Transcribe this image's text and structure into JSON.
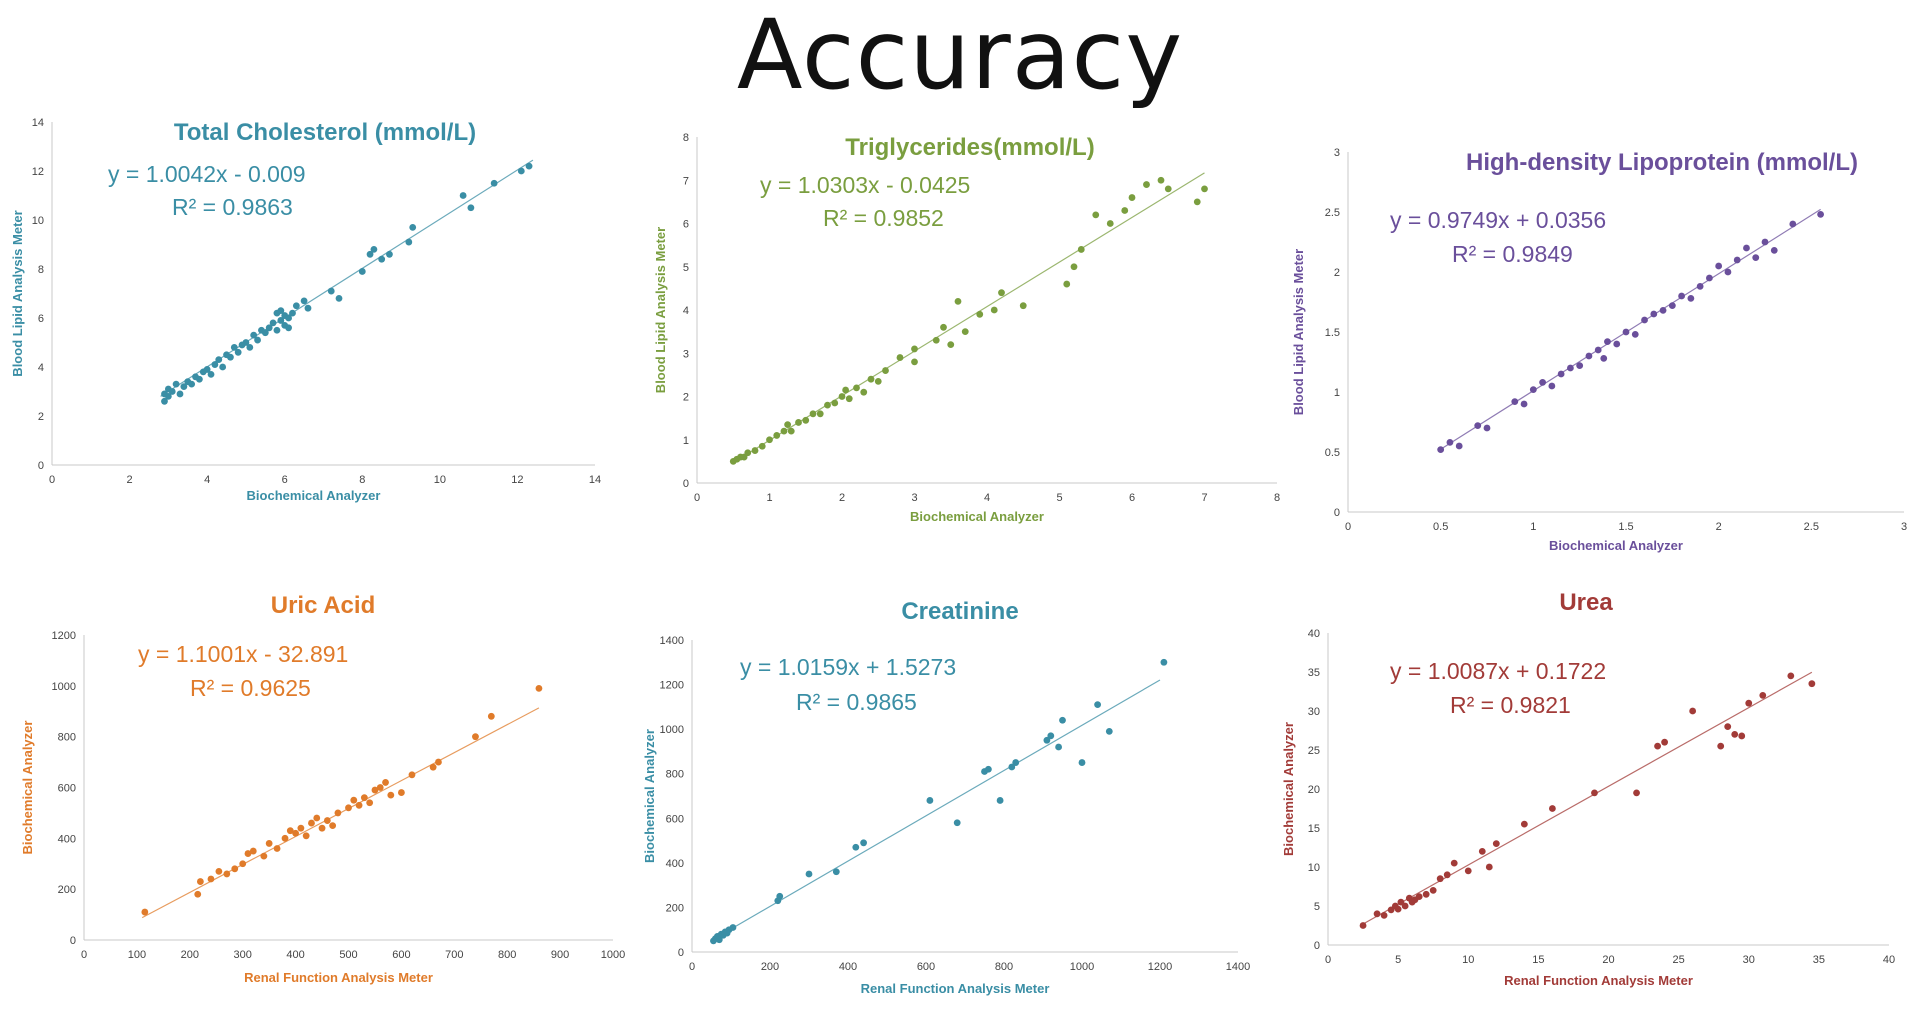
{
  "page_title": "Accuracy",
  "chart_data": [
    {
      "type": "scatter",
      "title": "Total Cholesterol (mmol/L)",
      "color": "#3a8ea5",
      "eq": "y = 1.0042x - 0.009",
      "r2": "R² = 0.9863",
      "xlabel": "Biochemical Analyzer",
      "ylabel": "Blood Lipid Analysis Meter",
      "xlim": [
        0,
        14
      ],
      "ylim": [
        0,
        14
      ],
      "xticks": [
        0,
        2,
        4,
        6,
        8,
        10,
        12,
        14
      ],
      "yticks": [
        0,
        2,
        4,
        6,
        8,
        10,
        12,
        14
      ],
      "trendline": {
        "slope": 1.0042,
        "intercept": -0.009,
        "x_range": [
          2.8,
          12.4
        ]
      },
      "points": [
        [
          2.9,
          2.6
        ],
        [
          2.9,
          2.9
        ],
        [
          3.0,
          2.8
        ],
        [
          3.0,
          3.1
        ],
        [
          3.1,
          3.0
        ],
        [
          3.2,
          3.3
        ],
        [
          3.3,
          2.9
        ],
        [
          3.4,
          3.2
        ],
        [
          3.5,
          3.4
        ],
        [
          3.6,
          3.3
        ],
        [
          3.7,
          3.6
        ],
        [
          3.8,
          3.5
        ],
        [
          3.9,
          3.8
        ],
        [
          4.0,
          3.9
        ],
        [
          4.1,
          3.7
        ],
        [
          4.2,
          4.1
        ],
        [
          4.3,
          4.3
        ],
        [
          4.4,
          4.0
        ],
        [
          4.5,
          4.5
        ],
        [
          4.6,
          4.4
        ],
        [
          4.7,
          4.8
        ],
        [
          4.8,
          4.6
        ],
        [
          4.9,
          4.9
        ],
        [
          5.0,
          5.0
        ],
        [
          5.1,
          4.8
        ],
        [
          5.2,
          5.3
        ],
        [
          5.3,
          5.1
        ],
        [
          5.4,
          5.5
        ],
        [
          5.5,
          5.4
        ],
        [
          5.6,
          5.6
        ],
        [
          5.7,
          5.8
        ],
        [
          5.8,
          5.5
        ],
        [
          5.8,
          6.2
        ],
        [
          5.9,
          5.9
        ],
        [
          5.9,
          6.3
        ],
        [
          6.0,
          5.7
        ],
        [
          6.0,
          6.1
        ],
        [
          6.1,
          6.0
        ],
        [
          6.1,
          5.6
        ],
        [
          6.2,
          6.2
        ],
        [
          6.3,
          6.5
        ],
        [
          6.5,
          6.7
        ],
        [
          6.6,
          6.4
        ],
        [
          7.2,
          7.1
        ],
        [
          7.4,
          6.8
        ],
        [
          8.0,
          7.9
        ],
        [
          8.2,
          8.6
        ],
        [
          8.3,
          8.8
        ],
        [
          8.5,
          8.4
        ],
        [
          8.7,
          8.6
        ],
        [
          9.2,
          9.1
        ],
        [
          9.3,
          9.7
        ],
        [
          10.6,
          11.0
        ],
        [
          10.8,
          10.5
        ],
        [
          11.4,
          11.5
        ],
        [
          12.1,
          12.0
        ],
        [
          12.3,
          12.2
        ]
      ]
    },
    {
      "type": "scatter",
      "title": "Triglycerides(mmol/L)",
      "color": "#7a9e3f",
      "eq": "y = 1.0303x - 0.0425",
      "r2": "R² = 0.9852",
      "xlabel": "Biochemical  Analyzer",
      "ylabel": "Blood Lipid Analysis Meter",
      "xlim": [
        0,
        8
      ],
      "ylim": [
        0,
        8
      ],
      "xticks": [
        0,
        1,
        2,
        3,
        4,
        5,
        6,
        7,
        8
      ],
      "yticks": [
        0,
        1,
        2,
        3,
        4,
        5,
        6,
        7,
        8
      ],
      "trendline": {
        "slope": 1.0303,
        "intercept": -0.0425,
        "x_range": [
          0.5,
          7.0
        ]
      },
      "points": [
        [
          0.5,
          0.5
        ],
        [
          0.55,
          0.55
        ],
        [
          0.6,
          0.6
        ],
        [
          0.65,
          0.6
        ],
        [
          0.7,
          0.7
        ],
        [
          0.8,
          0.75
        ],
        [
          0.9,
          0.85
        ],
        [
          1.0,
          1.0
        ],
        [
          1.1,
          1.1
        ],
        [
          1.2,
          1.2
        ],
        [
          1.25,
          1.35
        ],
        [
          1.3,
          1.2
        ],
        [
          1.4,
          1.4
        ],
        [
          1.5,
          1.45
        ],
        [
          1.6,
          1.6
        ],
        [
          1.7,
          1.6
        ],
        [
          1.8,
          1.8
        ],
        [
          1.9,
          1.85
        ],
        [
          2.0,
          2.0
        ],
        [
          2.05,
          2.15
        ],
        [
          2.1,
          1.95
        ],
        [
          2.2,
          2.2
        ],
        [
          2.3,
          2.1
        ],
        [
          2.4,
          2.4
        ],
        [
          2.5,
          2.35
        ],
        [
          2.6,
          2.6
        ],
        [
          2.8,
          2.9
        ],
        [
          3.0,
          2.8
        ],
        [
          3.0,
          3.1
        ],
        [
          3.3,
          3.3
        ],
        [
          3.4,
          3.6
        ],
        [
          3.5,
          3.2
        ],
        [
          3.6,
          4.2
        ],
        [
          3.7,
          3.5
        ],
        [
          3.9,
          3.9
        ],
        [
          4.1,
          4.0
        ],
        [
          4.2,
          4.4
        ],
        [
          4.5,
          4.1
        ],
        [
          5.1,
          4.6
        ],
        [
          5.2,
          5.0
        ],
        [
          5.3,
          5.4
        ],
        [
          5.5,
          6.2
        ],
        [
          5.7,
          6.0
        ],
        [
          5.9,
          6.3
        ],
        [
          6.0,
          6.6
        ],
        [
          6.2,
          6.9
        ],
        [
          6.4,
          7.0
        ],
        [
          6.5,
          6.8
        ],
        [
          6.9,
          6.5
        ],
        [
          7.0,
          6.8
        ]
      ]
    },
    {
      "type": "scatter",
      "title": "High-density Lipoprotein (mmol/L)",
      "color": "#6a4f9b",
      "eq": "y = 0.9749x + 0.0356",
      "r2": "R² = 0.9849",
      "xlabel": "Biochemical  Analyzer",
      "ylabel": "Blood Lipid Analysis Meter",
      "xlim": [
        0,
        3
      ],
      "ylim": [
        0,
        3
      ],
      "xticks": [
        0,
        0.5,
        1,
        1.5,
        2,
        2.5,
        3
      ],
      "yticks": [
        0,
        0.5,
        1,
        1.5,
        2,
        2.5,
        3
      ],
      "trendline": {
        "slope": 0.9749,
        "intercept": 0.0356,
        "x_range": [
          0.5,
          2.55
        ]
      },
      "points": [
        [
          0.5,
          0.52
        ],
        [
          0.55,
          0.58
        ],
        [
          0.6,
          0.55
        ],
        [
          0.7,
          0.72
        ],
        [
          0.75,
          0.7
        ],
        [
          0.9,
          0.92
        ],
        [
          0.95,
          0.9
        ],
        [
          1.0,
          1.02
        ],
        [
          1.05,
          1.08
        ],
        [
          1.1,
          1.05
        ],
        [
          1.15,
          1.15
        ],
        [
          1.2,
          1.2
        ],
        [
          1.25,
          1.22
        ],
        [
          1.3,
          1.3
        ],
        [
          1.35,
          1.35
        ],
        [
          1.38,
          1.28
        ],
        [
          1.4,
          1.42
        ],
        [
          1.45,
          1.4
        ],
        [
          1.5,
          1.5
        ],
        [
          1.55,
          1.48
        ],
        [
          1.6,
          1.6
        ],
        [
          1.65,
          1.65
        ],
        [
          1.7,
          1.68
        ],
        [
          1.75,
          1.72
        ],
        [
          1.8,
          1.8
        ],
        [
          1.85,
          1.78
        ],
        [
          1.9,
          1.88
        ],
        [
          1.95,
          1.95
        ],
        [
          2.0,
          2.05
        ],
        [
          2.05,
          2.0
        ],
        [
          2.1,
          2.1
        ],
        [
          2.15,
          2.2
        ],
        [
          2.2,
          2.12
        ],
        [
          2.25,
          2.25
        ],
        [
          2.3,
          2.18
        ],
        [
          2.4,
          2.4
        ],
        [
          2.55,
          2.48
        ]
      ]
    },
    {
      "type": "scatter",
      "title": "Uric Acid",
      "color": "#e07b2a",
      "eq": "y = 1.1001x - 32.891",
      "r2": "R² = 0.9625",
      "xlabel": "Renal Function Analysis Meter",
      "ylabel": "Biochemical Analyzer",
      "xlim": [
        0,
        1000
      ],
      "ylim": [
        0,
        1200
      ],
      "xticks": [
        0,
        100,
        200,
        300,
        400,
        500,
        600,
        700,
        800,
        900,
        1000
      ],
      "yticks": [
        0,
        200,
        400,
        600,
        800,
        1000,
        1200
      ],
      "trendline": {
        "slope": 1.1001,
        "intercept": -32.891,
        "x_range": [
          110,
          860
        ]
      },
      "points": [
        [
          115,
          110
        ],
        [
          215,
          180
        ],
        [
          220,
          230
        ],
        [
          240,
          240
        ],
        [
          255,
          270
        ],
        [
          270,
          260
        ],
        [
          285,
          280
        ],
        [
          300,
          300
        ],
        [
          310,
          340
        ],
        [
          320,
          350
        ],
        [
          340,
          330
        ],
        [
          350,
          380
        ],
        [
          365,
          360
        ],
        [
          380,
          400
        ],
        [
          390,
          430
        ],
        [
          400,
          420
        ],
        [
          410,
          440
        ],
        [
          420,
          410
        ],
        [
          430,
          460
        ],
        [
          440,
          480
        ],
        [
          450,
          440
        ],
        [
          460,
          470
        ],
        [
          470,
          450
        ],
        [
          480,
          500
        ],
        [
          500,
          520
        ],
        [
          510,
          550
        ],
        [
          520,
          530
        ],
        [
          530,
          560
        ],
        [
          540,
          540
        ],
        [
          550,
          590
        ],
        [
          560,
          600
        ],
        [
          570,
          620
        ],
        [
          580,
          570
        ],
        [
          600,
          580
        ],
        [
          620,
          650
        ],
        [
          660,
          680
        ],
        [
          670,
          700
        ],
        [
          740,
          800
        ],
        [
          770,
          880
        ],
        [
          860,
          990
        ]
      ]
    },
    {
      "type": "scatter",
      "title": "Creatinine",
      "color": "#3a8ea5",
      "eq": "y = 1.0159x + 1.5273",
      "r2": "R² = 0.9865",
      "xlabel": "Renal Function Analysis Meter",
      "ylabel": "Biochemical Analyzer",
      "xlim": [
        0,
        1400
      ],
      "ylim": [
        0,
        1400
      ],
      "xticks": [
        0,
        200,
        400,
        600,
        800,
        1000,
        1200,
        1400
      ],
      "yticks": [
        0,
        200,
        400,
        600,
        800,
        1000,
        1200,
        1400
      ],
      "trendline": {
        "slope": 1.0159,
        "intercept": 1.5273,
        "x_range": [
          50,
          1200
        ]
      },
      "points": [
        [
          55,
          50
        ],
        [
          60,
          60
        ],
        [
          65,
          70
        ],
        [
          70,
          55
        ],
        [
          75,
          80
        ],
        [
          80,
          75
        ],
        [
          85,
          90
        ],
        [
          90,
          85
        ],
        [
          95,
          100
        ],
        [
          105,
          110
        ],
        [
          220,
          230
        ],
        [
          225,
          250
        ],
        [
          300,
          350
        ],
        [
          370,
          360
        ],
        [
          420,
          470
        ],
        [
          440,
          490
        ],
        [
          610,
          680
        ],
        [
          680,
          580
        ],
        [
          750,
          810
        ],
        [
          760,
          820
        ],
        [
          790,
          680
        ],
        [
          820,
          830
        ],
        [
          830,
          850
        ],
        [
          910,
          950
        ],
        [
          920,
          970
        ],
        [
          940,
          920
        ],
        [
          950,
          1040
        ],
        [
          1000,
          850
        ],
        [
          1040,
          1110
        ],
        [
          1070,
          990
        ],
        [
          1210,
          1300
        ]
      ]
    },
    {
      "type": "scatter",
      "title": "Urea",
      "color": "#a23b38",
      "eq": "y = 1.0087x + 0.1722",
      "r2": "R² = 0.9821",
      "xlabel": "Renal Function Analysis Meter",
      "ylabel": "Biochemical Analyzer",
      "xlim": [
        0,
        40
      ],
      "ylim": [
        0,
        40
      ],
      "xticks": [
        0,
        5,
        10,
        15,
        20,
        25,
        30,
        35,
        40
      ],
      "yticks": [
        0,
        5,
        10,
        15,
        20,
        25,
        30,
        35,
        40
      ],
      "trendline": {
        "slope": 1.0087,
        "intercept": 0.1722,
        "x_range": [
          2.5,
          34.5
        ]
      },
      "points": [
        [
          2.5,
          2.5
        ],
        [
          3.5,
          4.0
        ],
        [
          4.0,
          3.8
        ],
        [
          4.5,
          4.5
        ],
        [
          4.8,
          5.0
        ],
        [
          5.0,
          4.6
        ],
        [
          5.2,
          5.5
        ],
        [
          5.5,
          5.0
        ],
        [
          5.8,
          6.0
        ],
        [
          6.0,
          5.5
        ],
        [
          6.2,
          5.8
        ],
        [
          6.5,
          6.2
        ],
        [
          7.0,
          6.5
        ],
        [
          7.5,
          7.0
        ],
        [
          8.0,
          8.5
        ],
        [
          8.5,
          9.0
        ],
        [
          9.0,
          10.5
        ],
        [
          10.0,
          9.5
        ],
        [
          11.0,
          12.0
        ],
        [
          11.5,
          10.0
        ],
        [
          12.0,
          13.0
        ],
        [
          14.0,
          15.5
        ],
        [
          16.0,
          17.5
        ],
        [
          19.0,
          19.5
        ],
        [
          22.0,
          19.5
        ],
        [
          23.5,
          25.5
        ],
        [
          24.0,
          26.0
        ],
        [
          26.0,
          30.0
        ],
        [
          28.0,
          25.5
        ],
        [
          28.5,
          28.0
        ],
        [
          29.0,
          27.0
        ],
        [
          29.5,
          26.8
        ],
        [
          30.0,
          31.0
        ],
        [
          31.0,
          32.0
        ],
        [
          33.0,
          34.5
        ],
        [
          34.5,
          33.5
        ]
      ]
    }
  ]
}
